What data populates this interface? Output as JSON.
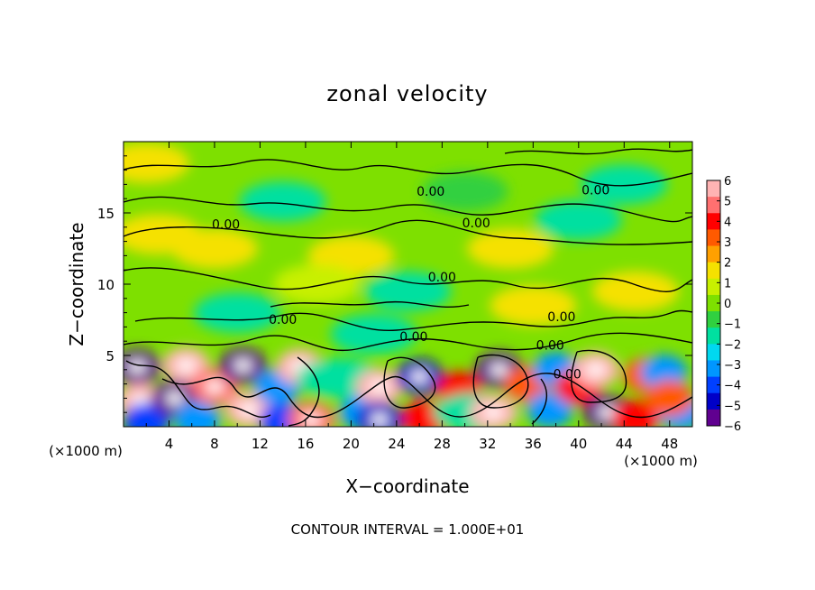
{
  "chart_data": {
    "type": "heatmap",
    "title": "zonal velocity",
    "xlabel": "X−coordinate",
    "ylabel": "Z−coordinate",
    "x_unit_left": "(×1000 m)",
    "x_unit_right": "(×1000 m)",
    "footer": "CONTOUR INTERVAL = 1.000E+01",
    "xlim": [
      0,
      50
    ],
    "ylim": [
      0,
      20
    ],
    "x_ticks": [
      "4",
      "8",
      "12",
      "16",
      "20",
      "24",
      "28",
      "32",
      "36",
      "40",
      "44",
      "48"
    ],
    "y_ticks": [
      "5",
      "10",
      "15"
    ],
    "colorbar": {
      "range": [
        -6,
        6
      ],
      "labels": [
        "6",
        "5",
        "4",
        "3",
        "2",
        "1",
        "0",
        "−1",
        "−2",
        "−3",
        "−4",
        "−5",
        "−6"
      ],
      "colors": [
        "#ffb3b3",
        "#ff7070",
        "#ff0000",
        "#ff5a00",
        "#ffa000",
        "#f5e100",
        "#c8f000",
        "#7ee000",
        "#30d040",
        "#00e0a0",
        "#00d8f0",
        "#0096ff",
        "#0040ff",
        "#0000c8",
        "#600090"
      ]
    },
    "contour_labels": [
      {
        "text": "0.00",
        "x": 27,
        "y": 16.2
      },
      {
        "text": "0.00",
        "x": 41.5,
        "y": 16.3
      },
      {
        "text": "0.00",
        "x": 9,
        "y": 13.9
      },
      {
        "text": "0.00",
        "x": 31,
        "y": 14.0
      },
      {
        "text": "0.00",
        "x": 28,
        "y": 10.2
      },
      {
        "text": "0.00",
        "x": 14,
        "y": 7.2
      },
      {
        "text": "0.00",
        "x": 25.5,
        "y": 6.0
      },
      {
        "text": "0.00",
        "x": 38.5,
        "y": 7.4
      },
      {
        "text": "0.00",
        "x": 37.5,
        "y": 5.4
      },
      {
        "text": "0.00",
        "x": 39,
        "y": 3.4
      }
    ],
    "velocity_cells": [
      {
        "x": 1.2,
        "z": 4.2,
        "u": -6
      },
      {
        "x": 1.5,
        "z": 1.8,
        "u": 6
      },
      {
        "x": 2.0,
        "z": 0.4,
        "u": -4
      },
      {
        "x": 5.5,
        "z": 4.3,
        "u": 6
      },
      {
        "x": 4.5,
        "z": 2.0,
        "u": -6
      },
      {
        "x": 6.5,
        "z": 0.5,
        "u": -3
      },
      {
        "x": 8.0,
        "z": 2.8,
        "u": 5
      },
      {
        "x": 10.5,
        "z": 4.3,
        "u": -6
      },
      {
        "x": 11.0,
        "z": 1.2,
        "u": 6
      },
      {
        "x": 13.5,
        "z": 2.8,
        "u": -3
      },
      {
        "x": 14.0,
        "z": 0.4,
        "u": -4
      },
      {
        "x": 15.5,
        "z": 4.2,
        "u": 6
      },
      {
        "x": 16.5,
        "z": 0.5,
        "u": 5
      },
      {
        "x": 19.0,
        "z": 3.4,
        "u": -2
      },
      {
        "x": 21.0,
        "z": 1.0,
        "u": -3
      },
      {
        "x": 22.5,
        "z": 2.8,
        "u": 6
      },
      {
        "x": 22.5,
        "z": 0.5,
        "u": -5
      },
      {
        "x": 26.0,
        "z": 3.5,
        "u": -5
      },
      {
        "x": 26.5,
        "z": 0.6,
        "u": 4
      },
      {
        "x": 29.5,
        "z": 2.6,
        "u": 4
      },
      {
        "x": 31.0,
        "z": 1.0,
        "u": -2
      },
      {
        "x": 33.0,
        "z": 4.0,
        "u": -6
      },
      {
        "x": 32.5,
        "z": 1.0,
        "u": 6
      },
      {
        "x": 35.5,
        "z": 3.0,
        "u": 3
      },
      {
        "x": 37.5,
        "z": 1.2,
        "u": -3
      },
      {
        "x": 38.0,
        "z": 4.0,
        "u": -3
      },
      {
        "x": 40.0,
        "z": 2.8,
        "u": 4
      },
      {
        "x": 41.5,
        "z": 4.0,
        "u": 6
      },
      {
        "x": 42.5,
        "z": 1.0,
        "u": -6
      },
      {
        "x": 45.0,
        "z": 0.6,
        "u": 4
      },
      {
        "x": 46.0,
        "z": 3.6,
        "u": 3
      },
      {
        "x": 47.5,
        "z": 3.8,
        "u": -3
      },
      {
        "x": 49.0,
        "z": 1.0,
        "u": -3
      },
      {
        "x": 48.0,
        "z": 2.0,
        "u": 3
      },
      {
        "x": 3.0,
        "z": 13.5,
        "u": 1.5
      },
      {
        "x": 8.0,
        "z": 12.5,
        "u": 1.2
      },
      {
        "x": 14.0,
        "z": 15.8,
        "u": -1.2
      },
      {
        "x": 20.0,
        "z": 12.0,
        "u": 1.4
      },
      {
        "x": 25.0,
        "z": 9.5,
        "u": -1.2
      },
      {
        "x": 30.0,
        "z": 16.5,
        "u": -1
      },
      {
        "x": 34.0,
        "z": 12.5,
        "u": 1.4
      },
      {
        "x": 40.0,
        "z": 14.5,
        "u": -1.3
      },
      {
        "x": 44.0,
        "z": 17.0,
        "u": -1.8
      },
      {
        "x": 45.0,
        "z": 9.5,
        "u": 1.3
      },
      {
        "x": 10.0,
        "z": 8.0,
        "u": -1.2
      },
      {
        "x": 36.0,
        "z": 8.5,
        "u": 1.2
      },
      {
        "x": 2.0,
        "z": 18.5,
        "u": 1.5
      },
      {
        "x": 22.0,
        "z": 6.5,
        "u": -1.4
      },
      {
        "x": 17.0,
        "z": 10.0,
        "u": 1.0
      }
    ]
  }
}
